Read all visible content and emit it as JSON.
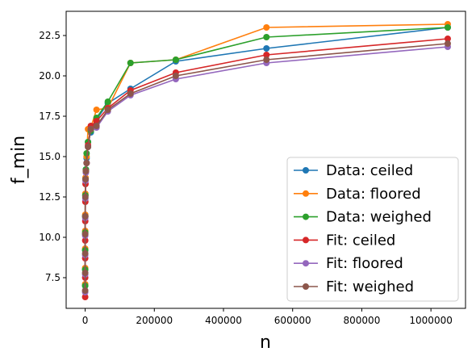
{
  "chart_data": {
    "type": "line",
    "xlabel": "n",
    "ylabel": "f_min",
    "xlim": [
      -55000,
      1100000
    ],
    "ylim": [
      5.6,
      24.0
    ],
    "xticks": [
      0,
      200000,
      400000,
      600000,
      800000,
      1000000
    ],
    "xtick_labels": [
      "0",
      "200000",
      "400000",
      "600000",
      "800000",
      "1000000"
    ],
    "yticks": [
      7.5,
      10.0,
      12.5,
      15.0,
      17.5,
      20.0,
      22.5
    ],
    "ytick_labels": [
      "7.5",
      "10.0",
      "12.5",
      "15.0",
      "17.5",
      "20.0",
      "22.5"
    ],
    "grid": false,
    "legend": "lower-right",
    "series": [
      {
        "name": "Data: ceiled",
        "color": "#1f77b4",
        "x": [
          16,
          32,
          64,
          128,
          256,
          512,
          1024,
          2048,
          4096,
          8192,
          16384,
          32768,
          65536,
          131072,
          262144,
          524288,
          1048576
        ],
        "y": [
          7.0,
          8.0,
          9.2,
          10.2,
          11.3,
          12.6,
          13.6,
          14.2,
          14.9,
          15.9,
          16.5,
          17.3,
          18.3,
          19.2,
          20.9,
          21.7,
          23.0
        ]
      },
      {
        "name": "Data: floored",
        "color": "#ff7f0e",
        "x": [
          16,
          32,
          64,
          128,
          256,
          512,
          1024,
          2048,
          4096,
          8192,
          16384,
          32768,
          65536,
          131072,
          262144,
          524288,
          1048576
        ],
        "y": [
          7.1,
          8.1,
          9.3,
          10.4,
          11.4,
          12.7,
          13.7,
          14.1,
          15.0,
          16.7,
          16.8,
          17.9,
          18.0,
          20.8,
          21.0,
          23.0,
          23.2
        ]
      },
      {
        "name": "Data: weighed",
        "color": "#2ca02c",
        "x": [
          16,
          32,
          64,
          128,
          256,
          512,
          1024,
          2048,
          4096,
          8192,
          16384,
          32768,
          65536,
          131072,
          262144,
          524288,
          1048576
        ],
        "y": [
          7.0,
          8.0,
          9.2,
          10.3,
          11.3,
          12.6,
          13.6,
          14.2,
          15.2,
          15.9,
          16.6,
          17.4,
          18.4,
          20.8,
          21.0,
          22.4,
          23.0
        ]
      },
      {
        "name": "Fit: ceiled",
        "color": "#d62728",
        "x": [
          16,
          32,
          64,
          128,
          256,
          512,
          1024,
          2048,
          4096,
          8192,
          16384,
          32768,
          65536,
          131072,
          262144,
          524288,
          1048576
        ],
        "y": [
          6.3,
          7.5,
          8.7,
          9.8,
          11.0,
          12.2,
          13.3,
          14.1,
          14.6,
          15.7,
          16.9,
          17.2,
          18.0,
          19.1,
          20.2,
          21.3,
          22.3
        ]
      },
      {
        "name": "Fit: floored",
        "color": "#9467bd",
        "x": [
          16,
          32,
          64,
          128,
          256,
          512,
          1024,
          2048,
          4096,
          8192,
          16384,
          32768,
          65536,
          131072,
          262144,
          524288,
          1048576
        ],
        "y": [
          6.6,
          7.7,
          8.9,
          10.1,
          11.2,
          12.4,
          13.5,
          14.0,
          14.6,
          15.6,
          16.7,
          16.8,
          17.8,
          18.8,
          19.8,
          20.8,
          21.8
        ]
      },
      {
        "name": "Fit: weighed",
        "color": "#8c564b",
        "x": [
          16,
          32,
          64,
          128,
          256,
          512,
          1024,
          2048,
          4096,
          8192,
          16384,
          32768,
          65536,
          131072,
          262144,
          524288,
          1048576
        ],
        "y": [
          6.7,
          7.8,
          9.0,
          10.2,
          11.3,
          12.5,
          13.6,
          14.1,
          14.6,
          15.6,
          16.7,
          16.9,
          17.9,
          18.9,
          20.0,
          21.0,
          22.0
        ]
      }
    ]
  }
}
